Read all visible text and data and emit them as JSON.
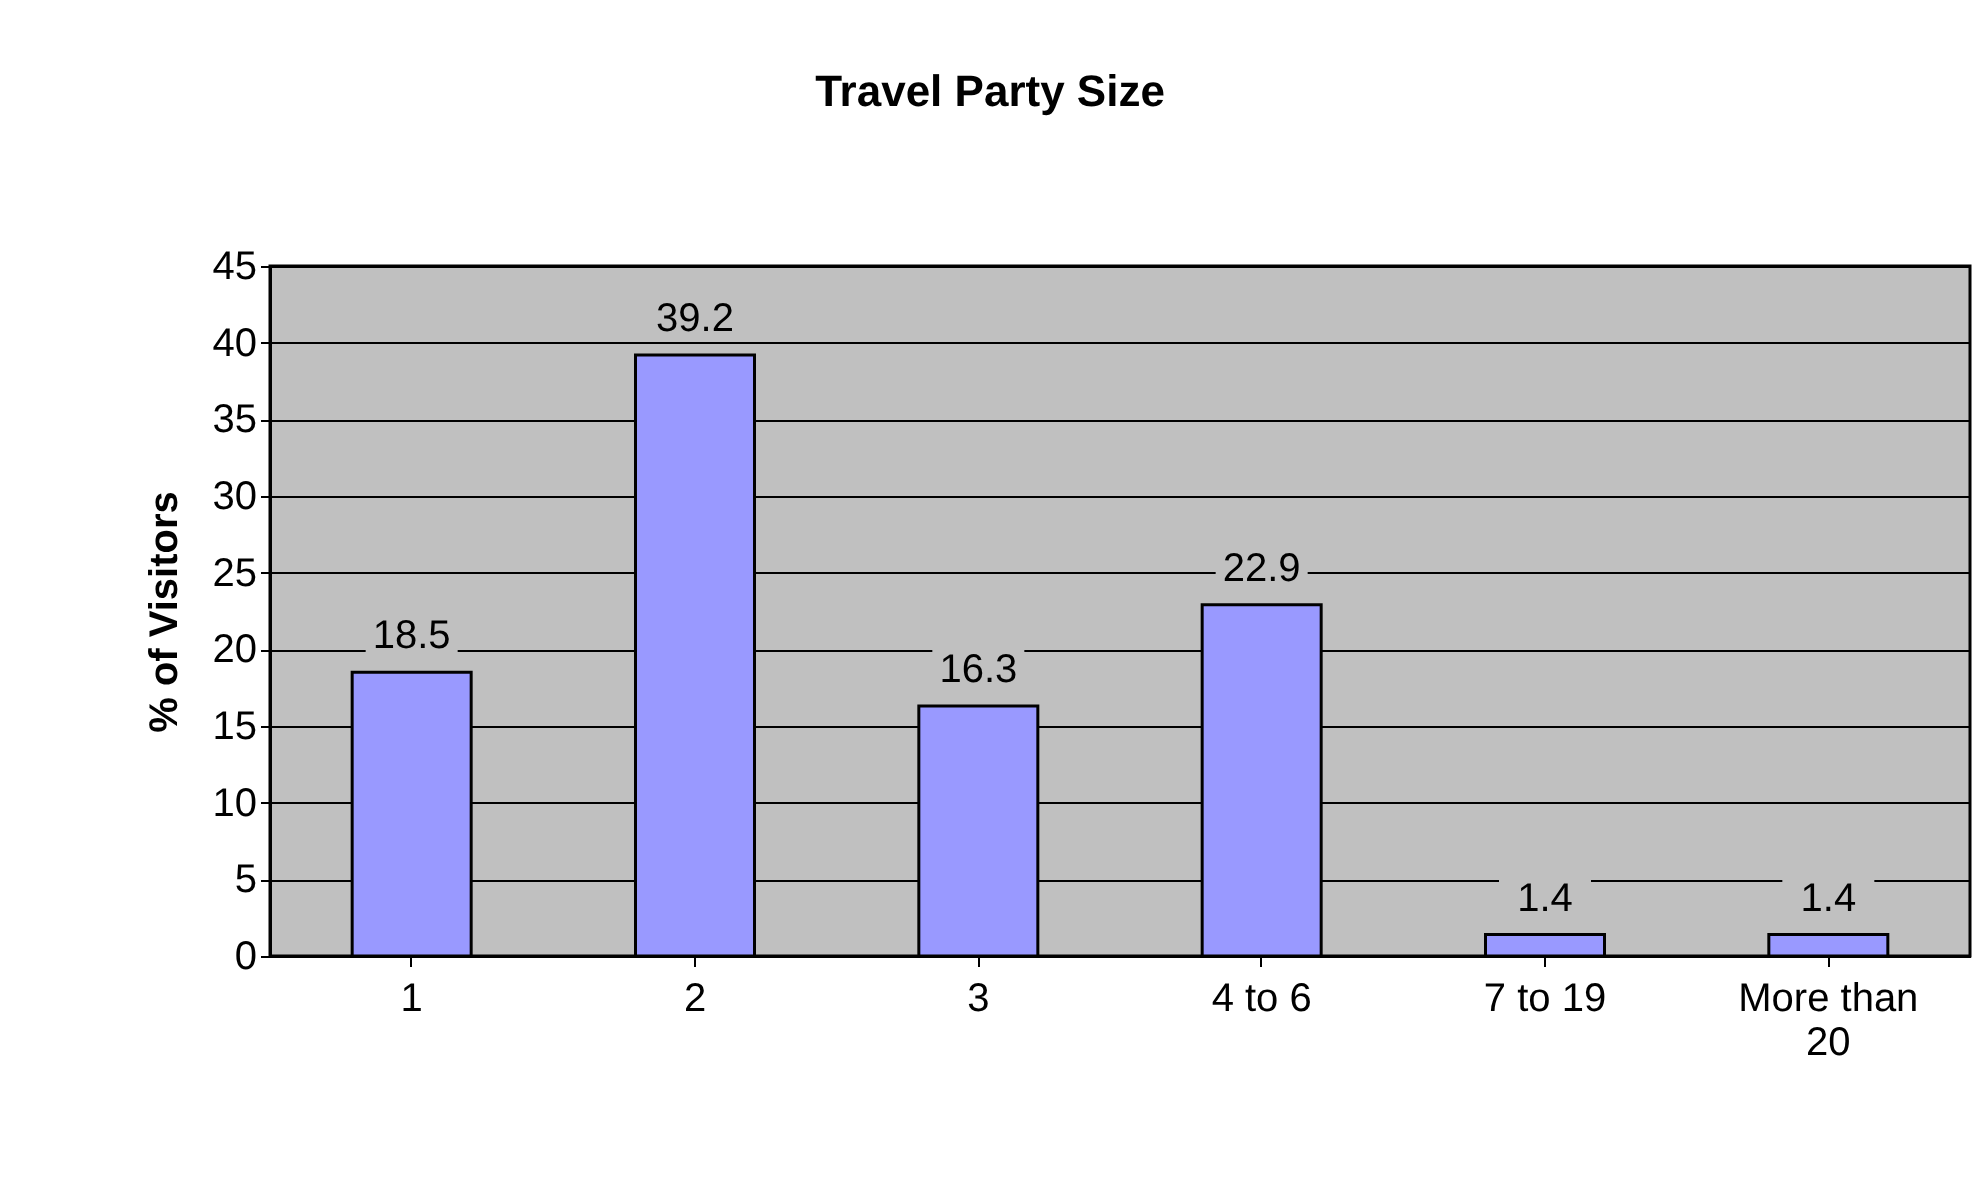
{
  "chart_data": {
    "type": "bar",
    "title": "Travel Party Size",
    "ylabel": "% of Visitors",
    "categories": [
      "1",
      "2",
      "3",
      "4 to 6",
      "7 to 19",
      "More than 20"
    ],
    "values": [
      18.5,
      39.2,
      16.3,
      22.9,
      1.4,
      1.4
    ],
    "color": "#9999ff",
    "ylim": [
      0,
      45
    ],
    "yticks": [
      0,
      5,
      10,
      15,
      20,
      25,
      30,
      35,
      40,
      45
    ],
    "grid": "y",
    "data_labels": true
  }
}
